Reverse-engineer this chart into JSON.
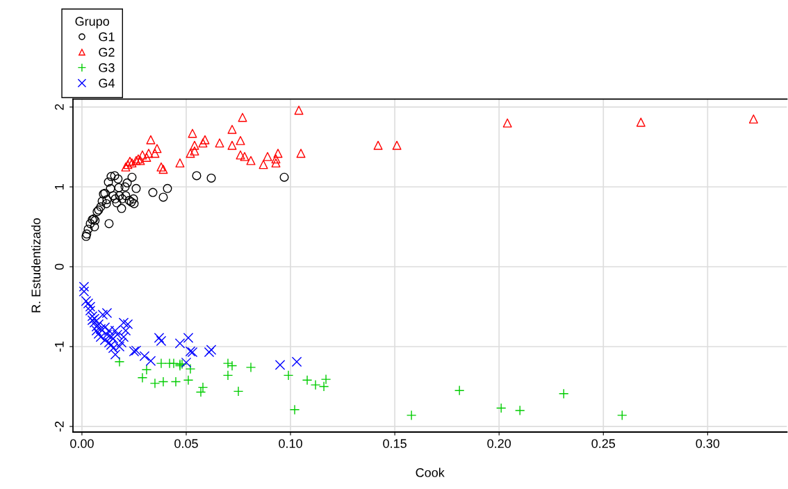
{
  "chart_data": {
    "type": "scatter",
    "xlabel": "Cook",
    "ylabel": "R. Estudentizado",
    "legend_title": "Grupo",
    "legend": "top left",
    "grid": true,
    "xlim": [
      -0.0043,
      0.338
    ],
    "xticks": [
      {
        "value": 0,
        "label": "0.00"
      },
      {
        "value": 0.05,
        "label": "0.05"
      },
      {
        "value": 0.1,
        "label": "0.10"
      },
      {
        "value": 0.15,
        "label": "0.15"
      },
      {
        "value": 0.2,
        "label": "0.20"
      },
      {
        "value": 0.25,
        "label": "0.25"
      },
      {
        "value": 0.3,
        "label": "0.30"
      }
    ],
    "ylim": [
      -2.07,
      2.1
    ],
    "yticks": [
      -2,
      -1,
      0,
      1,
      2
    ],
    "series": [
      {
        "name": "G1",
        "color": "#000000",
        "marker": "circle",
        "x": [
          0.002,
          0.0023,
          0.003,
          0.004,
          0.005,
          0.0057,
          0.006,
          0.0063,
          0.0073,
          0.008,
          0.009,
          0.0097,
          0.0103,
          0.011,
          0.0117,
          0.012,
          0.0127,
          0.013,
          0.0137,
          0.014,
          0.015,
          0.0157,
          0.016,
          0.0167,
          0.0173,
          0.0177,
          0.018,
          0.019,
          0.0193,
          0.0207,
          0.021,
          0.0217,
          0.0227,
          0.0237,
          0.024,
          0.0247,
          0.025,
          0.026,
          0.034,
          0.039,
          0.041,
          0.055,
          0.062,
          0.097
        ],
        "values": [
          0.38,
          0.41,
          0.47,
          0.54,
          0.59,
          0.6,
          0.5,
          0.58,
          0.69,
          0.71,
          0.75,
          0.82,
          0.91,
          0.92,
          0.79,
          0.84,
          1.06,
          0.54,
          0.98,
          1.13,
          0.89,
          1.14,
          0.85,
          0.8,
          1.1,
          0.99,
          0.89,
          0.73,
          0.85,
          1.0,
          0.89,
          1.05,
          0.83,
          0.81,
          1.12,
          0.85,
          0.79,
          0.98,
          0.93,
          0.87,
          0.98,
          1.14,
          1.11,
          1.12
        ]
      },
      {
        "name": "G2",
        "color": "#ff0000",
        "marker": "triangle",
        "x": [
          0.021,
          0.022,
          0.023,
          0.024,
          0.026,
          0.027,
          0.028,
          0.029,
          0.031,
          0.032,
          0.033,
          0.035,
          0.036,
          0.038,
          0.039,
          0.047,
          0.052,
          0.053,
          0.054,
          0.054,
          0.058,
          0.059,
          0.066,
          0.072,
          0.072,
          0.076,
          0.076,
          0.077,
          0.078,
          0.081,
          0.087,
          0.089,
          0.093,
          0.093,
          0.094,
          0.104,
          0.105,
          0.142,
          0.151,
          0.204,
          0.268,
          0.322
        ],
        "values": [
          1.25,
          1.28,
          1.32,
          1.3,
          1.33,
          1.35,
          1.33,
          1.4,
          1.37,
          1.42,
          1.59,
          1.42,
          1.48,
          1.25,
          1.22,
          1.3,
          1.42,
          1.67,
          1.45,
          1.52,
          1.55,
          1.59,
          1.55,
          1.52,
          1.72,
          1.58,
          1.4,
          1.87,
          1.38,
          1.33,
          1.28,
          1.38,
          1.35,
          1.3,
          1.42,
          1.96,
          1.42,
          1.52,
          1.52,
          1.8,
          1.81,
          1.85
        ]
      },
      {
        "name": "G3",
        "color": "#00cc00",
        "marker": "plus",
        "x": [
          0.018,
          0.029,
          0.031,
          0.035,
          0.038,
          0.039,
          0.042,
          0.044,
          0.045,
          0.047,
          0.047,
          0.048,
          0.051,
          0.052,
          0.057,
          0.058,
          0.07,
          0.07,
          0.072,
          0.075,
          0.081,
          0.099,
          0.102,
          0.108,
          0.112,
          0.116,
          0.117,
          0.158,
          0.181,
          0.201,
          0.21,
          0.231,
          0.259
        ],
        "values": [
          -1.19,
          -1.39,
          -1.29,
          -1.46,
          -1.21,
          -1.44,
          -1.21,
          -1.21,
          -1.44,
          -1.22,
          -1.24,
          -1.22,
          -1.42,
          -1.28,
          -1.57,
          -1.51,
          -1.36,
          -1.21,
          -1.24,
          -1.56,
          -1.26,
          -1.36,
          -1.79,
          -1.42,
          -1.48,
          -1.5,
          -1.41,
          -1.86,
          -1.55,
          -1.77,
          -1.8,
          -1.59,
          -1.86
        ]
      },
      {
        "name": "G4",
        "color": "#0000ff",
        "marker": "cross",
        "x": [
          0.001,
          0.001,
          0.002,
          0.003,
          0.004,
          0.004,
          0.005,
          0.005,
          0.006,
          0.006,
          0.007,
          0.007,
          0.008,
          0.008,
          0.009,
          0.009,
          0.01,
          0.011,
          0.011,
          0.012,
          0.012,
          0.013,
          0.013,
          0.014,
          0.014,
          0.015,
          0.015,
          0.016,
          0.016,
          0.017,
          0.018,
          0.019,
          0.02,
          0.02,
          0.021,
          0.022,
          0.025,
          0.026,
          0.03,
          0.033,
          0.037,
          0.038,
          0.047,
          0.05,
          0.051,
          0.052,
          0.053,
          0.061,
          0.062,
          0.095,
          0.103
        ],
        "values": [
          -0.25,
          -0.31,
          -0.43,
          -0.46,
          -0.5,
          -0.55,
          -0.62,
          -0.67,
          -0.7,
          -0.65,
          -0.75,
          -0.8,
          -0.72,
          -0.84,
          -0.78,
          -0.88,
          -0.6,
          -0.92,
          -0.76,
          -0.85,
          -0.58,
          -0.8,
          -0.95,
          -0.88,
          -0.98,
          -1.02,
          -0.9,
          -0.8,
          -1.1,
          -0.85,
          -1.0,
          -0.95,
          -0.7,
          -0.88,
          -0.8,
          -0.72,
          -1.06,
          -1.05,
          -1.12,
          -1.18,
          -0.89,
          -0.93,
          -0.96,
          -1.2,
          -0.89,
          -1.06,
          -1.07,
          -1.07,
          -1.04,
          -1.23,
          -1.19
        ]
      }
    ]
  }
}
